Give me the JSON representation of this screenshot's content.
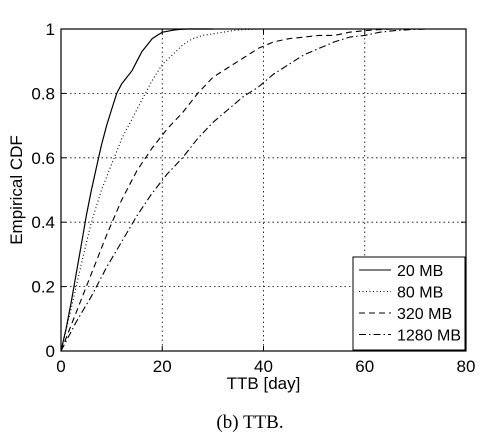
{
  "chart_data": {
    "type": "line",
    "caption": "(b) TTB.",
    "xlabel": "TTB [day]",
    "ylabel": "Empirical CDF",
    "xlim": [
      0,
      80
    ],
    "ylim": [
      0,
      1
    ],
    "x_ticks": [
      "0",
      "20",
      "40",
      "60",
      "80"
    ],
    "y_ticks": [
      "0",
      "0.2",
      "0.4",
      "0.6",
      "0.8",
      "1"
    ],
    "grid": true,
    "legend_position": "bottom-right",
    "series": [
      {
        "name": "20 MB",
        "style": "solid",
        "x": [
          0,
          1,
          2,
          3,
          4,
          5,
          6,
          7,
          8,
          9,
          10,
          11,
          12,
          13,
          14,
          15,
          16,
          17,
          18,
          19,
          20,
          21,
          22,
          23,
          24,
          25,
          26,
          28,
          30
        ],
        "y": [
          0,
          0.07,
          0.15,
          0.24,
          0.33,
          0.42,
          0.5,
          0.57,
          0.64,
          0.7,
          0.75,
          0.8,
          0.83,
          0.85,
          0.87,
          0.9,
          0.93,
          0.95,
          0.97,
          0.98,
          0.99,
          0.993,
          0.996,
          0.998,
          0.999,
          1.0,
          1.0,
          1.0,
          1.0
        ]
      },
      {
        "name": "80 MB",
        "style": "dotted",
        "x": [
          0,
          2,
          4,
          6,
          8,
          10,
          12,
          14,
          16,
          18,
          20,
          22,
          24,
          26,
          28,
          30,
          32,
          34,
          36,
          38,
          40,
          42,
          45
        ],
        "y": [
          0,
          0.13,
          0.27,
          0.4,
          0.5,
          0.58,
          0.66,
          0.72,
          0.78,
          0.84,
          0.89,
          0.92,
          0.95,
          0.97,
          0.98,
          0.985,
          0.99,
          0.995,
          0.998,
          0.999,
          1.0,
          1.0,
          1.0
        ]
      },
      {
        "name": "320 MB",
        "style": "dashed",
        "x": [
          0,
          3,
          6,
          9,
          12,
          15,
          18,
          21,
          24,
          27,
          30,
          33,
          36,
          39,
          42,
          45,
          48,
          51,
          54,
          57,
          60,
          63,
          66,
          70
        ],
        "y": [
          0,
          0.12,
          0.24,
          0.36,
          0.47,
          0.56,
          0.63,
          0.69,
          0.74,
          0.8,
          0.85,
          0.88,
          0.91,
          0.94,
          0.96,
          0.97,
          0.975,
          0.98,
          0.98,
          0.99,
          0.995,
          0.998,
          1.0,
          1.0
        ]
      },
      {
        "name": "1280 MB",
        "style": "dashdot",
        "x": [
          0,
          3,
          6,
          9,
          12,
          15,
          18,
          21,
          24,
          27,
          30,
          33,
          36,
          39,
          42,
          45,
          48,
          51,
          54,
          57,
          60,
          63,
          66,
          69,
          72,
          75
        ],
        "y": [
          0,
          0.09,
          0.17,
          0.26,
          0.34,
          0.42,
          0.49,
          0.55,
          0.6,
          0.66,
          0.71,
          0.75,
          0.79,
          0.82,
          0.86,
          0.89,
          0.92,
          0.94,
          0.96,
          0.975,
          0.98,
          0.99,
          0.995,
          0.998,
          1.0,
          1.0
        ]
      }
    ]
  }
}
